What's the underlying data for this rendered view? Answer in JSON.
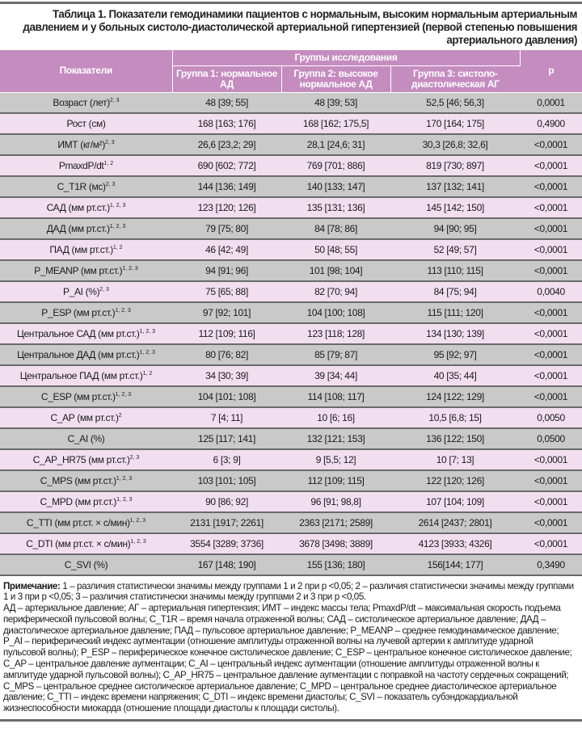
{
  "title": "Таблица 1. Показатели гемодинамики пациентов с нормальным, высоким нормальным артериальным давлением и у больных систоло-диастолической артериальной гипертензией (первой степенью повышения артериального давления)",
  "header": {
    "indicator": "Показатели",
    "groups": "Группы исследования",
    "group1": "Группа 1: нормальное АД",
    "group2": "Группа 2: высокое нормальное АД",
    "group3": "Группа 3: систоло-диастолическая АГ",
    "p": "p"
  },
  "colors": {
    "header": "#c58cc0",
    "row_gray": "#c9c9c9",
    "row_pink": "#f1dff0",
    "rule": "#6a6a6a"
  },
  "rows": [
    {
      "label": "Возраст (лет)",
      "sup": "2, 3",
      "g1": "48 [39; 55]",
      "g2": "48 [39; 53]",
      "g3": "52,5 [46; 56,3]",
      "p": "0,0001"
    },
    {
      "label": "Рост (см)",
      "sup": "",
      "g1": "168 [163; 176]",
      "g2": "168 [162; 175,5]",
      "g3": "170 [164; 175]",
      "p": "0,4900"
    },
    {
      "label": "ИМТ (кг/м²)",
      "sup": "2, 3",
      "g1": "26,6 [23,2; 29]",
      "g2": "28,1 [24,6; 31]",
      "g3": "30,3 [26,8; 32,6]",
      "p": "<0,0001"
    },
    {
      "label": "PmaxdP/dt",
      "sup": "1, 2",
      "g1": "690 [602; 772]",
      "g2": "769 [701; 886]",
      "g3": "819 [730; 897]",
      "p": "<0,0001"
    },
    {
      "label": "C_T1R (мс)",
      "sup": "2, 3",
      "g1": "144 [136; 149]",
      "g2": "140 [133; 147]",
      "g3": "137 [132; 141]",
      "p": "<0,0001"
    },
    {
      "label": "САД (мм рт.ст.)",
      "sup": "1, 2, 3",
      "g1": "123 [120; 126]",
      "g2": "135 [131; 136]",
      "g3": "145 [142; 150]",
      "p": "<0,0001"
    },
    {
      "label": "ДАД (мм рт.ст.)",
      "sup": "1, 2, 3",
      "g1": "79 [75; 80]",
      "g2": "84 [78; 86]",
      "g3": "94 [90; 95]",
      "p": "<0,0001"
    },
    {
      "label": "ПАД (мм рт.ст.)",
      "sup": "1, 2",
      "g1": "46 [42; 49]",
      "g2": "50 [48; 55]",
      "g3": "52 [49; 57]",
      "p": "<0,0001"
    },
    {
      "label": "P_MEANP (мм рт.ст.)",
      "sup": "1, 2, 3",
      "g1": "94 [91; 96]",
      "g2": "101 [98; 104]",
      "g3": "113 [110; 115]",
      "p": "<0,0001"
    },
    {
      "label": "P_AI (%)",
      "sup": "2, 3",
      "g1": "75 [65; 88]",
      "g2": "82 [70; 94]",
      "g3": "84 [75; 94]",
      "p": "0,0040"
    },
    {
      "label": "P_ESP (мм рт.ст.)",
      "sup": "1, 2, 3",
      "g1": "97 [92; 101]",
      "g2": "104 [100; 108]",
      "g3": "115 [111; 120]",
      "p": "<0,0001"
    },
    {
      "label": "Центральное САД (мм рт.ст.)",
      "sup": "1, 2, 3",
      "g1": "112 [109; 116]",
      "g2": "123 [118; 128]",
      "g3": "134 [130; 139]",
      "p": "<0,0001"
    },
    {
      "label": "Центральное ДАД (мм рт.ст.)",
      "sup": "1, 2, 3",
      "g1": "80 [76; 82]",
      "g2": "85 [79; 87]",
      "g3": "95 [92; 97]",
      "p": "<0,0001"
    },
    {
      "label": "Центральное ПАД (мм рт.ст.)",
      "sup": "1, 2",
      "g1": "34 [30; 39]",
      "g2": "39 [34; 44]",
      "g3": "40 [35; 44]",
      "p": "<0,0001"
    },
    {
      "label": "C_ESP (мм рт.ст.)",
      "sup": "1, 2, 3",
      "g1": "104 [101; 108]",
      "g2": "114 [108; 117]",
      "g3": "124 [122; 129]",
      "p": "<0,0001"
    },
    {
      "label": "C_AP (мм рт.ст.)",
      "sup": "2",
      "g1": "7 [4; 11]",
      "g2": "10 [6; 16]",
      "g3": "10,5 [6,8; 15]",
      "p": "0,0050"
    },
    {
      "label": "C_AI (%)",
      "sup": "",
      "g1": "125 [117; 141]",
      "g2": "132 [121; 153]",
      "g3": "136 [122; 150]",
      "p": "0,0500"
    },
    {
      "label": "C_AP_HR75 (мм рт.ст.)",
      "sup": "2, 3",
      "g1": "6 [3; 9]",
      "g2": "9 [5,5; 12]",
      "g3": "10 [7; 13]",
      "p": "<0,0001"
    },
    {
      "label": "C_MPS (мм рт.ст.)",
      "sup": "1, 2, 3",
      "g1": "103 [101; 105]",
      "g2": "112 [109; 115]",
      "g3": "122 [120; 126]",
      "p": "<0,0001"
    },
    {
      "label": "C_MPD (мм рт.ст.)",
      "sup": "1, 2, 3",
      "g1": "90 [86; 92]",
      "g2": "96 [91; 98,8]",
      "g3": "107 [104; 109]",
      "p": "<0,0001"
    },
    {
      "label": "C_TTI (мм рт.ст. × с/мин)",
      "sup": "1, 2, 3",
      "g1": "2131 [1917; 2261]",
      "g2": "2363 [2171; 2589]",
      "g3": "2614 [2437; 2801]",
      "p": "<0,0001"
    },
    {
      "label": "C_DTI (мм рт.ст. × с/мин)",
      "sup": "1, 2, 3",
      "g1": "3554 [3289; 3736]",
      "g2": "3678 [3498; 3889]",
      "g3": "4123 [3933; 4326]",
      "p": "<0,0001"
    },
    {
      "label": "C_SVI (%)",
      "sup": "",
      "g1": "167 [148; 190]",
      "g2": "155 [136; 180]",
      "g3": "156[144; 177]",
      "p": "0,3490"
    }
  ],
  "notes": {
    "label": "Примечание:",
    "significance": " 1 – различия статистически значимы между группами 1 и 2 при p <0,05; 2 – различия статистически значимы между группами 1 и 3 при p <0,05; 3 – различия статистически значимы между группами 2 и 3 при p <0,05.",
    "abbreviations": "АД – артериальное давление; АГ – артериальная гипертензия; ИМТ – индекс массы тела; PmaxdP/dt – максимальная скорость подъема периферической пульсовой волны; C_T1R – время начала отраженной волны; САД – систолическое артериальное давление; ДАД – диастолическое артериальное давление; ПАД – пульсовое артериальное давление; P_MEANP – среднее гемодинамическое давление; P_AI – периферический индекс аугментации (отношение амплитуды отраженной волны на лучевой артерии к амплитуде ударной пульсовой волны); P_ESP – периферическое конечное систолическое давление; C_ESP – центральное конечное систолическое давление; C_AP – центральное давление аугментации; C_AI – центральный индекс аугментации (отношение амплитуды отраженной волны к амплитуде ударной пульсовой волны); C_AP_HR75 – центральное давление аугментации с поправкой на частоту сердечных сокращений; C_MPS – центральное среднее систолическое артериальное давление; C_MPD – центральное среднее диастолическое артериальное давление; C_TTI – индекс времени напряжения; C_DTI – индекс времени диастолы; C_SVI – показатель субэндокардиальной жизнеспособности миокарда (отношение площади диастолы к площади систолы)."
  }
}
